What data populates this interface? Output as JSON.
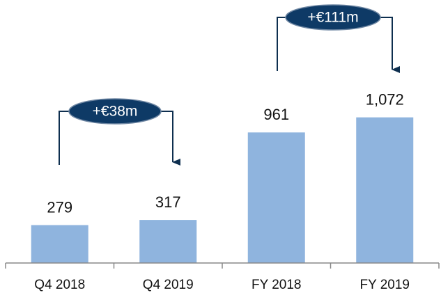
{
  "chart_data": {
    "type": "bar",
    "categories": [
      "Q4 2018",
      "Q4 2019",
      "FY 2018",
      "FY 2019"
    ],
    "values": [
      279,
      317,
      961,
      1072
    ],
    "value_labels": [
      "279",
      "317",
      "961",
      "1,072"
    ],
    "color": "#8fb4de",
    "ylim": [
      0,
      1900
    ],
    "annotations": [
      "+€38m",
      "+€111m"
    ]
  }
}
